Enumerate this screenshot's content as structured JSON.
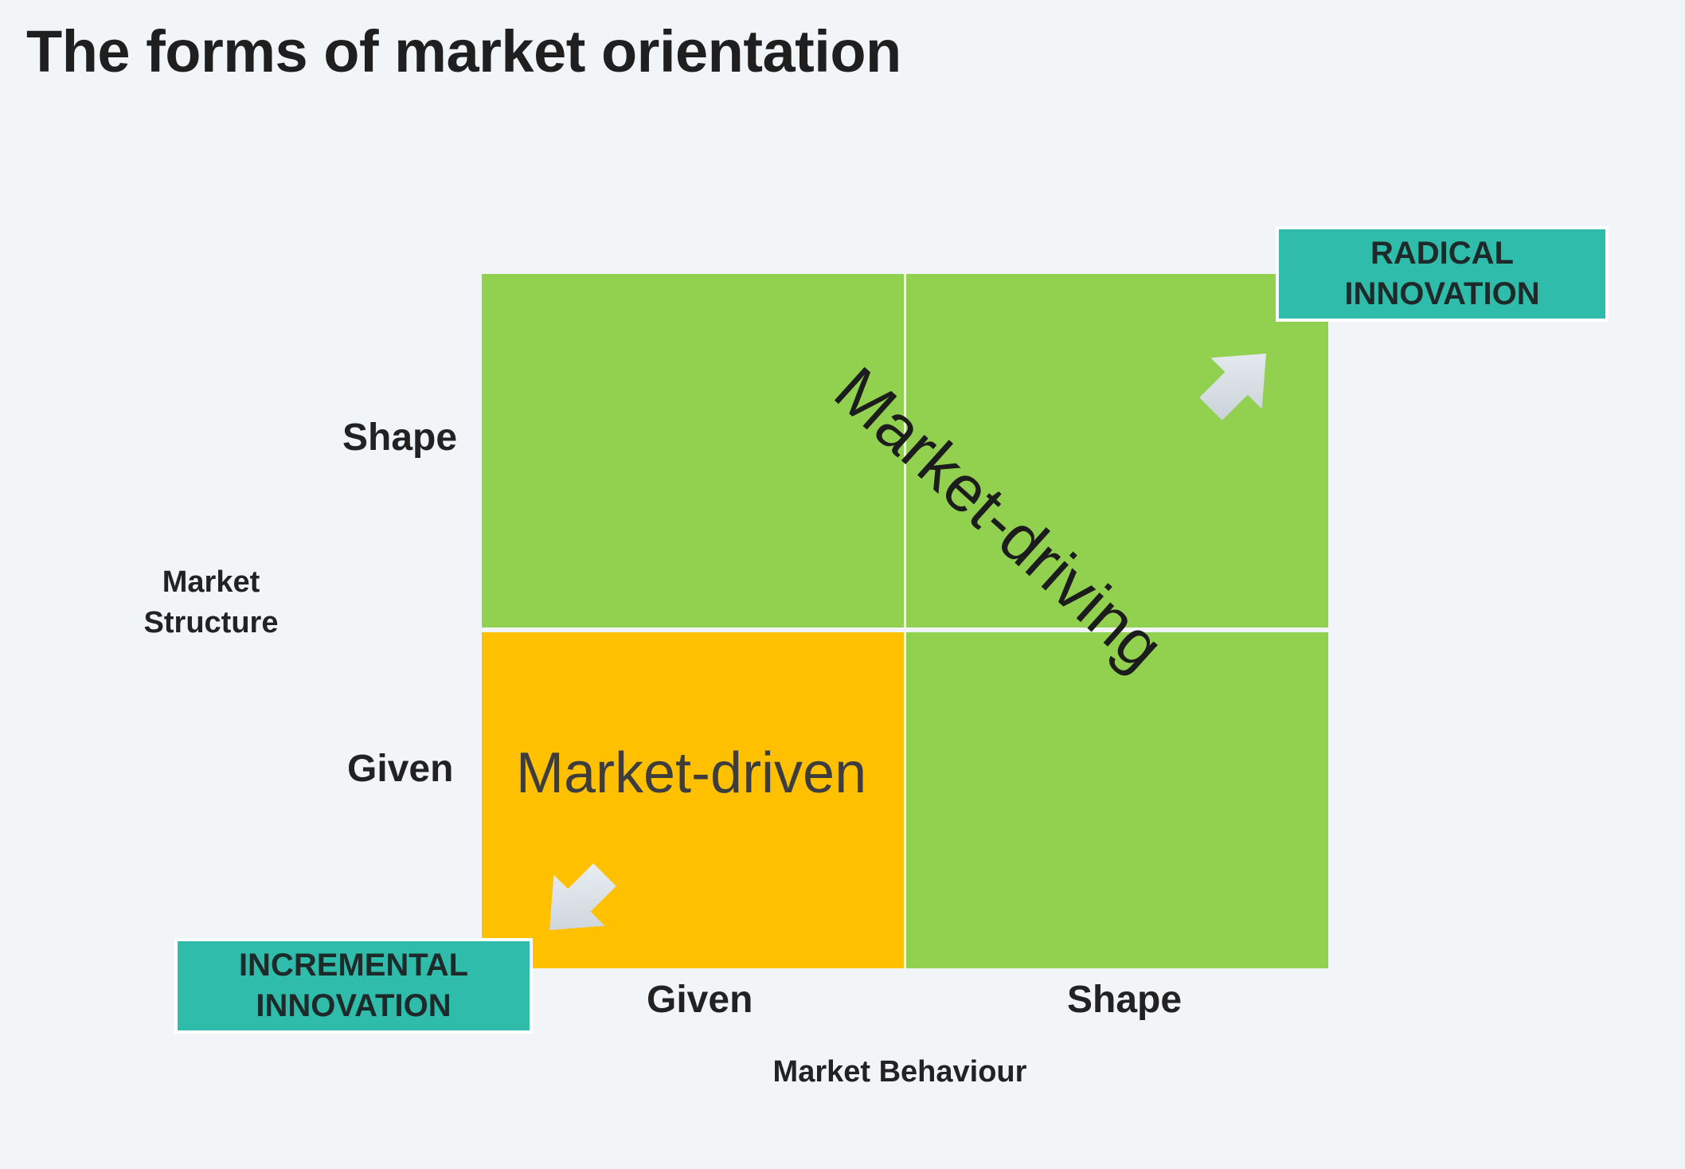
{
  "title": "The forms of market orientation",
  "axes": {
    "y_label_line1": "Market",
    "y_label_line2": "Structure",
    "x_label": "Market Behaviour",
    "y_ticks": [
      "Shape",
      "Given"
    ],
    "x_ticks": [
      "Given",
      "Shape"
    ]
  },
  "quadrants": {
    "top_left": {
      "color": "#92d050"
    },
    "top_right": {
      "color": "#92d050"
    },
    "bottom_left": {
      "color": "#ffc000"
    },
    "bottom_right": {
      "color": "#92d050"
    }
  },
  "regions": {
    "market_driven": "Market-driven",
    "market_driving": "Market-driving"
  },
  "callouts": {
    "radical_line1": "RADICAL",
    "radical_line2": "INNOVATION",
    "incremental_line1": "INCREMENTAL",
    "incremental_line2": "INNOVATION",
    "color": "#2fbcaa"
  },
  "arrows": {
    "up_right": "arrow-up-right-icon",
    "down_left": "arrow-down-left-icon"
  }
}
